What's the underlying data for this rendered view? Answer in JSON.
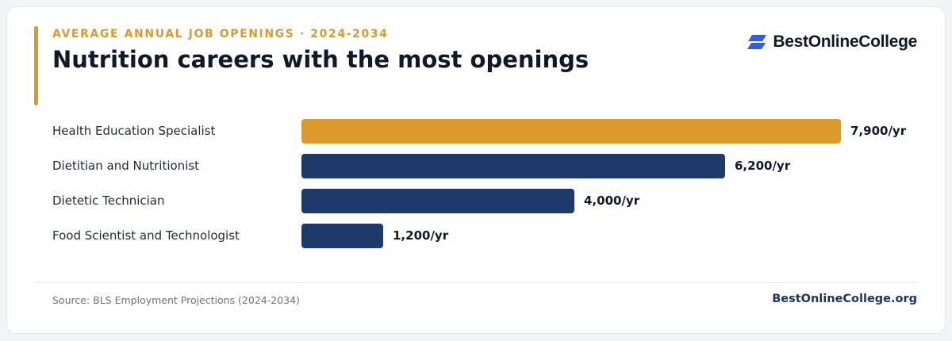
{
  "header": {
    "eyebrow": "AVERAGE ANNUAL JOB OPENINGS · 2024-2034",
    "title": "Nutrition careers with the most openings"
  },
  "brand": {
    "name": "BestOnlineCollege",
    "icon": "stacked-parallelogram-logo-icon",
    "color": "#2f5ce9"
  },
  "footer": {
    "source": "Source: BLS Employment Projections (2024-2034)",
    "site": "BestOnlineCollege.org"
  },
  "colors": {
    "highlight": "#dc9a29",
    "bar": "#1e3a6b"
  },
  "chart_data": {
    "type": "bar",
    "orientation": "horizontal",
    "categories": [
      "Health Education Specialist",
      "Dietitian and Nutritionist",
      "Dietetic Technician",
      "Food Scientist and Technologist"
    ],
    "values": [
      7900,
      6200,
      4000,
      1200
    ],
    "value_labels": [
      "7,900/yr",
      "6,200/yr",
      "4,000/yr",
      "1,200/yr"
    ],
    "highlight_index": 0,
    "xlim": [
      0,
      7900
    ],
    "grid": false,
    "legend": "none"
  }
}
